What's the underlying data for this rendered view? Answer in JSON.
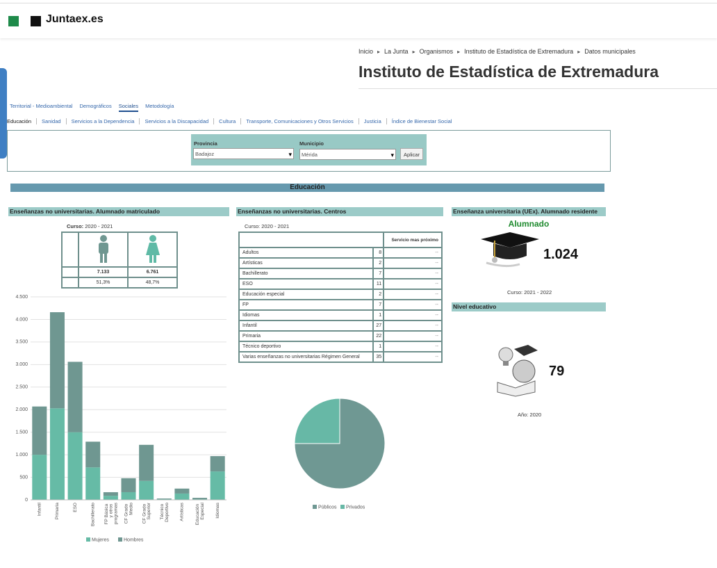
{
  "header": {
    "brand": "Juntaex.es"
  },
  "breadcrumb": [
    "Inicio",
    "La Junta",
    "Organismos",
    "Instituto de Estadística de Extremadura",
    "Datos municipales"
  ],
  "title": "Instituto de Estadística de Extremadura",
  "tabs": [
    "Territorial - Medioambiental",
    "Demográficos",
    "Sociales",
    "Metodología"
  ],
  "subtabs": [
    "Educación",
    "Sanidad",
    "Servicios a la Dependencia",
    "Servicios a la Discapacidad",
    "Cultura",
    "Transporte, Comunicaciones y Otros Servicios",
    "Justicia",
    "Índice de Bienestar Social"
  ],
  "filter": {
    "province_label": "Provincia",
    "province": "Badajoz",
    "municipality_label": "Municipio",
    "municipality": "Mérida",
    "button": "Aplicar"
  },
  "section": "Educación",
  "students": {
    "heading": "Enseñanzas no universitarias. Alumnado matriculado",
    "course_label": "Curso:",
    "course": "2020 - 2021",
    "men": "7.133",
    "women": "6.761",
    "men_pct": "51,3%",
    "women_pct": "48,7%"
  },
  "centers": {
    "heading": "Enseñanzas no universitarias. Centros",
    "course_label": "Curso:",
    "course": "2020 - 2021",
    "service_header": "Servicio mas próximo",
    "rows": [
      [
        "Adultos",
        "8",
        "--"
      ],
      [
        "Artísticas",
        "2",
        "--"
      ],
      [
        "Bachillerato",
        "7",
        "--"
      ],
      [
        "ESO",
        "11",
        "--"
      ],
      [
        "Educación especial",
        "2",
        "--"
      ],
      [
        "FP",
        "7",
        "--"
      ],
      [
        "Idiomas",
        "1",
        "--"
      ],
      [
        "Infantil",
        "27",
        "--"
      ],
      [
        "Primaria",
        "22",
        "--"
      ],
      [
        "Técnico deportivo",
        "1",
        "--"
      ],
      [
        "Varias enseñanzas no universitarias Régimen General",
        "35",
        "--"
      ]
    ]
  },
  "university": {
    "heading": "Enseñanza universitaria (UEx). Alumnado residente",
    "label": "Alumnado",
    "value": "1.024",
    "course_label": "Curso:",
    "course": "2021 - 2022"
  },
  "level": {
    "heading": "Nivel educativo",
    "value": "79",
    "year_label": "Año:",
    "year": "2020"
  },
  "chart_data": [
    {
      "type": "bar",
      "stacked": true,
      "categories": [
        "Infantil",
        "Primaria",
        "ESO",
        "Bachillerato",
        "FP Básica y otros programas",
        "CF Grado Medio",
        "CF Grado Superior",
        "Técnico Deportivo",
        "Artísticas",
        "Educación Especial",
        "Idiomas"
      ],
      "series": [
        {
          "name": "Mujeres",
          "color": "#66bba6",
          "values": [
            1000,
            2030,
            1500,
            720,
            90,
            170,
            420,
            15,
            140,
            15,
            630
          ]
        },
        {
          "name": "Hombres",
          "color": "#6f9791",
          "values": [
            1070,
            2130,
            1560,
            570,
            80,
            310,
            800,
            15,
            110,
            30,
            340
          ]
        }
      ],
      "ylim": [
        0,
        4500
      ],
      "yticks": [
        0,
        500,
        {
          "value": 1000,
          "label": "1.000"
        },
        {
          "value": 1500,
          "label": "1.500"
        },
        {
          "value": 2000,
          "label": "2.000"
        },
        {
          "value": 2500,
          "label": "2.500"
        },
        {
          "value": 3000,
          "label": "3.000"
        },
        {
          "value": 3500,
          "label": "3.500"
        },
        {
          "value": 4000,
          "label": "4.000"
        },
        {
          "value": 4500,
          "label": "4.500"
        }
      ],
      "grid": true,
      "legend": "bottom"
    },
    {
      "type": "pie",
      "categories": [
        "Públicos",
        "Privados"
      ],
      "values": [
        75,
        25
      ],
      "colors": [
        "#6f9893",
        "#67b8a6"
      ],
      "legend": "bottom"
    }
  ]
}
